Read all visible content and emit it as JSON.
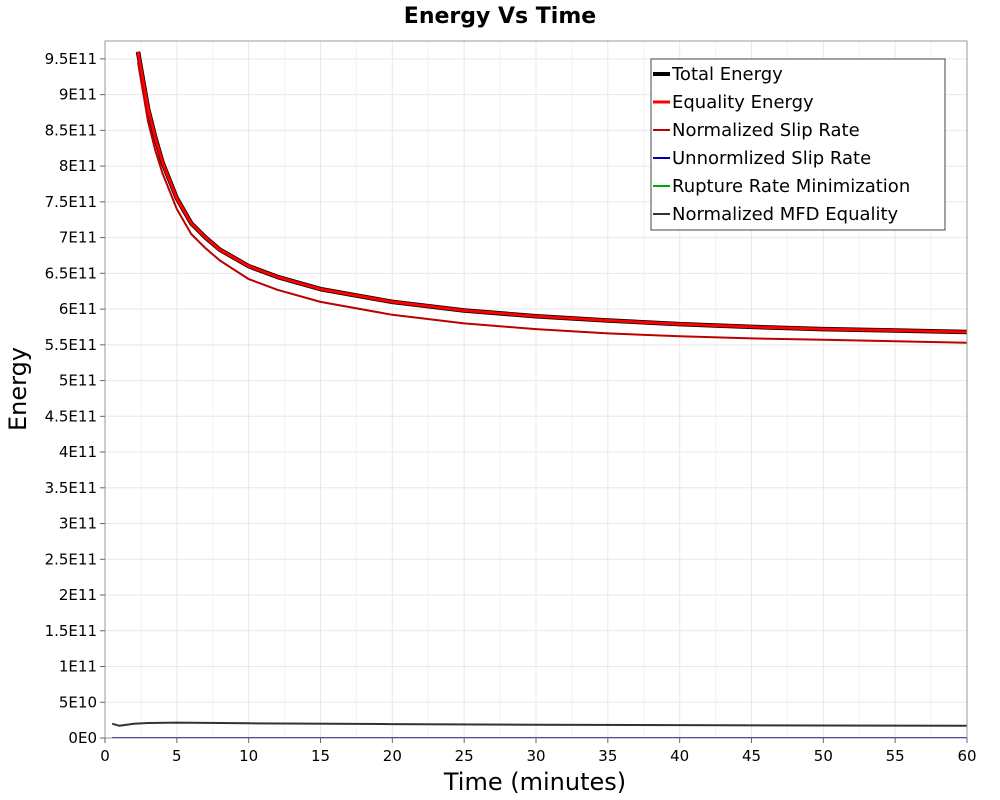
{
  "chart_data": {
    "type": "line",
    "title": "Energy Vs Time",
    "xlabel": "Time (minutes)",
    "ylabel": "Energy",
    "xlim": [
      0,
      60
    ],
    "ylim": [
      0,
      975000000000
    ],
    "grid": true,
    "legend_position": "top-right",
    "x_ticks": [
      0,
      5,
      10,
      15,
      20,
      25,
      30,
      35,
      40,
      45,
      50,
      55,
      60
    ],
    "x_tick_labels": [
      "0",
      "5",
      "10",
      "15",
      "20",
      "25",
      "30",
      "35",
      "40",
      "45",
      "50",
      "55",
      "60"
    ],
    "y_ticks": [
      0,
      50000000000,
      100000000000,
      150000000000,
      200000000000,
      250000000000,
      300000000000,
      350000000000,
      400000000000,
      450000000000,
      500000000000,
      550000000000,
      600000000000,
      650000000000,
      700000000000,
      750000000000,
      800000000000,
      850000000000,
      900000000000,
      950000000000
    ],
    "y_tick_labels": [
      "0E0",
      "5E10",
      "1E11",
      "1.5E11",
      "2E11",
      "2.5E11",
      "3E11",
      "3.5E11",
      "4E11",
      "4.5E11",
      "5E11",
      "5.5E11",
      "6E11",
      "6.5E11",
      "7E11",
      "7.5E11",
      "8E11",
      "8.5E11",
      "9E11",
      "9.5E11"
    ],
    "series": [
      {
        "name": "Total Energy",
        "color": "#000000",
        "x": [
          2.3,
          3,
          3.5,
          4,
          5,
          6,
          7,
          8,
          10,
          12,
          15,
          20,
          25,
          30,
          35,
          40,
          45,
          50,
          55,
          60
        ],
        "y": [
          960000000000,
          880000000000,
          840000000000,
          805000000000,
          755000000000,
          720000000000,
          700000000000,
          683000000000,
          660000000000,
          645000000000,
          628000000000,
          610000000000,
          598000000000,
          590000000000,
          584000000000,
          579000000000,
          575000000000,
          572000000000,
          570000000000,
          568000000000
        ]
      },
      {
        "name": "Equality Energy",
        "color": "#ff0000",
        "x": [
          2.3,
          3,
          3.5,
          4,
          5,
          6,
          7,
          8,
          10,
          12,
          15,
          20,
          25,
          30,
          35,
          40,
          45,
          50,
          55,
          60
        ],
        "y": [
          960000000000,
          880000000000,
          840000000000,
          805000000000,
          755000000000,
          720000000000,
          700000000000,
          683000000000,
          660000000000,
          645000000000,
          628000000000,
          610000000000,
          598000000000,
          590000000000,
          584000000000,
          579000000000,
          575000000000,
          572000000000,
          570000000000,
          568000000000
        ]
      },
      {
        "name": "Normalized Slip Rate",
        "color": "#bb0000",
        "x": [
          2.3,
          3,
          3.5,
          4,
          5,
          6,
          7,
          8,
          10,
          12,
          15,
          20,
          25,
          30,
          35,
          40,
          45,
          50,
          55,
          60
        ],
        "y": [
          945000000000,
          862000000000,
          822000000000,
          790000000000,
          740000000000,
          705000000000,
          685000000000,
          668000000000,
          642000000000,
          627000000000,
          610000000000,
          592000000000,
          580000000000,
          572000000000,
          566000000000,
          562000000000,
          559000000000,
          557000000000,
          555000000000,
          553000000000
        ]
      },
      {
        "name": "Unnormlized Slip Rate",
        "color": "#0000aa",
        "x": [
          0.5,
          60
        ],
        "y": [
          0,
          0
        ]
      },
      {
        "name": "Rupture Rate Minimization",
        "color": "#00aa00",
        "x": [
          0.5,
          60
        ],
        "y": [
          0,
          0
        ]
      },
      {
        "name": "Normalized MFD Equality",
        "color": "#333333",
        "x": [
          0.5,
          1,
          1.5,
          2,
          3,
          5,
          10,
          20,
          30,
          40,
          50,
          60
        ],
        "y": [
          20000000000,
          17000000000,
          18500000000,
          20000000000,
          21000000000,
          21500000000,
          20500000000,
          19500000000,
          18500000000,
          18000000000,
          17500000000,
          17000000000
        ]
      }
    ]
  }
}
